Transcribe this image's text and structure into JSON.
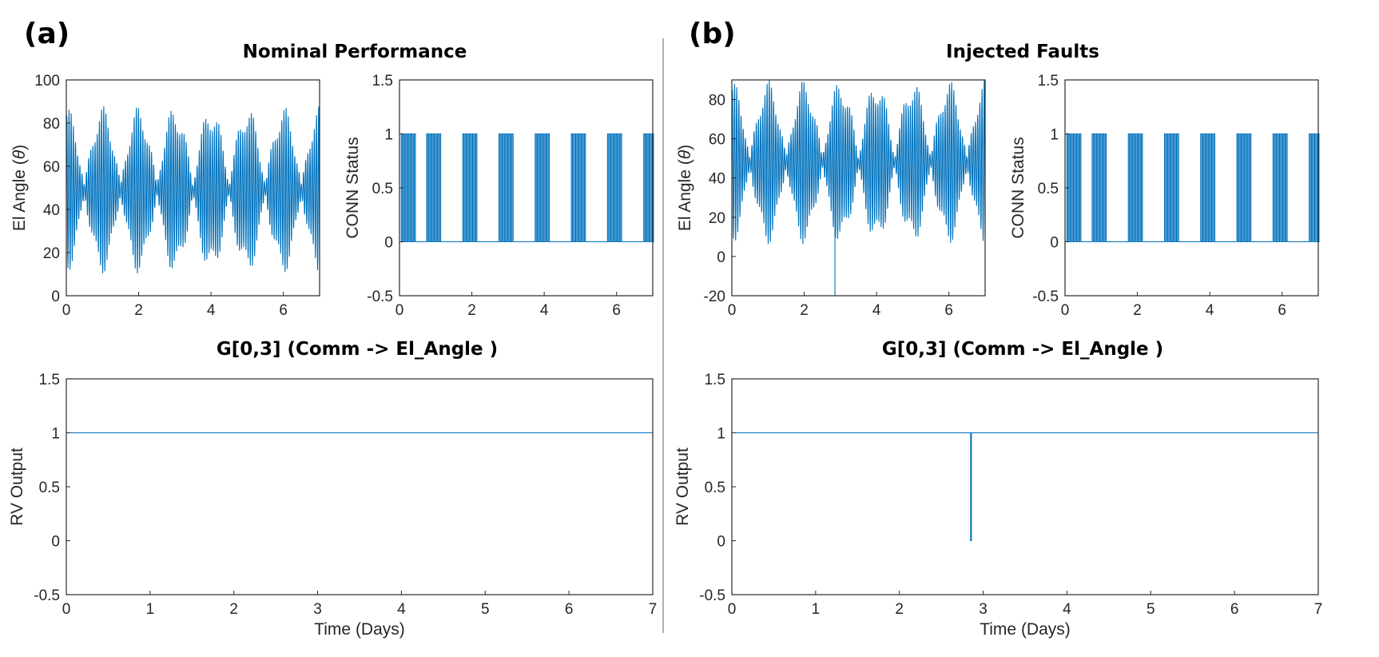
{
  "panels": {
    "a": {
      "tag": "(a)",
      "title": "Nominal Performance",
      "subtitle": "G[0,3] (Comm -> El_Angle )"
    },
    "b": {
      "tag": "(b)",
      "title": "Injected Faults",
      "subtitle": "G[0,3] (Comm -> El_Angle )"
    }
  },
  "colors": {
    "line": "#0072BD",
    "axis": "#262626",
    "divider": "#b0b0b0"
  },
  "chart_data": [
    {
      "id": "a_el",
      "type": "line",
      "ylabel_main": "El Angle (",
      "ylabel_sym": "θ",
      "ylabel_end": ")",
      "xlabel": "",
      "xlim": [
        0,
        7
      ],
      "ylim": [
        0,
        100
      ],
      "xticks": [
        0,
        2,
        4,
        6
      ],
      "yticks": [
        0,
        20,
        40,
        60,
        80,
        100
      ],
      "signal": {
        "kind": "oscillation",
        "center": 49,
        "amp_min": 2,
        "amp_max": 39,
        "beat_period_days": 1.0,
        "fast_period_days": 0.06
      }
    },
    {
      "id": "a_conn",
      "type": "line",
      "ylabel": "CONN Status",
      "xlabel": "",
      "xlim": [
        0,
        7
      ],
      "ylim": [
        -0.5,
        1.5
      ],
      "xticks": [
        0,
        2,
        4,
        6
      ],
      "yticks": [
        -0.5,
        0,
        0.5,
        1,
        1.5
      ],
      "signal": {
        "kind": "pulses",
        "base": 0,
        "high": 1,
        "pulse_starts": [
          0.05,
          0.75,
          1.75,
          2.75,
          3.75,
          4.75,
          5.75,
          6.75
        ],
        "pulse_width_days": 0.4
      }
    },
    {
      "id": "a_rv",
      "type": "line",
      "ylabel": "RV Output",
      "xlabel": "Time (Days)",
      "xlim": [
        0,
        7
      ],
      "ylim": [
        -0.5,
        1.5
      ],
      "xticks": [
        0,
        1,
        2,
        3,
        4,
        5,
        6,
        7
      ],
      "yticks": [
        -0.5,
        0,
        0.5,
        1,
        1.5
      ],
      "signal": {
        "kind": "constant",
        "value": 1
      }
    },
    {
      "id": "b_el",
      "type": "line",
      "ylabel_main": "El Angle (",
      "ylabel_sym": "θ",
      "ylabel_end": ")",
      "xlabel": "",
      "xlim": [
        0,
        7
      ],
      "ylim": [
        -20,
        90
      ],
      "xticks": [
        0,
        2,
        4,
        6
      ],
      "yticks": [
        -20,
        0,
        20,
        40,
        60,
        80
      ],
      "signal": {
        "kind": "oscillation",
        "center": 48,
        "amp_min": 2,
        "amp_max": 42,
        "beat_period_days": 1.0,
        "fast_period_days": 0.06,
        "fault_spike": {
          "x": 2.85,
          "y": -20
        }
      }
    },
    {
      "id": "b_conn",
      "type": "line",
      "ylabel": "CONN Status",
      "xlabel": "",
      "xlim": [
        0,
        7
      ],
      "ylim": [
        -0.5,
        1.5
      ],
      "xticks": [
        0,
        2,
        4,
        6
      ],
      "yticks": [
        -0.5,
        0,
        0.5,
        1,
        1.5
      ],
      "signal": {
        "kind": "pulses",
        "base": 0,
        "high": 1,
        "pulse_starts": [
          0.05,
          0.75,
          1.75,
          2.75,
          3.75,
          4.75,
          5.75,
          6.75
        ],
        "pulse_width_days": 0.4
      }
    },
    {
      "id": "b_rv",
      "type": "line",
      "ylabel": "RV Output",
      "xlabel": "Time (Days)",
      "xlim": [
        0,
        7
      ],
      "ylim": [
        -0.5,
        1.5
      ],
      "xticks": [
        0,
        1,
        2,
        3,
        4,
        5,
        6,
        7
      ],
      "yticks": [
        -0.5,
        0,
        0.5,
        1,
        1.5
      ],
      "signal": {
        "kind": "constant",
        "value": 1,
        "dip": {
          "x": 2.85,
          "y": 0
        }
      }
    }
  ]
}
